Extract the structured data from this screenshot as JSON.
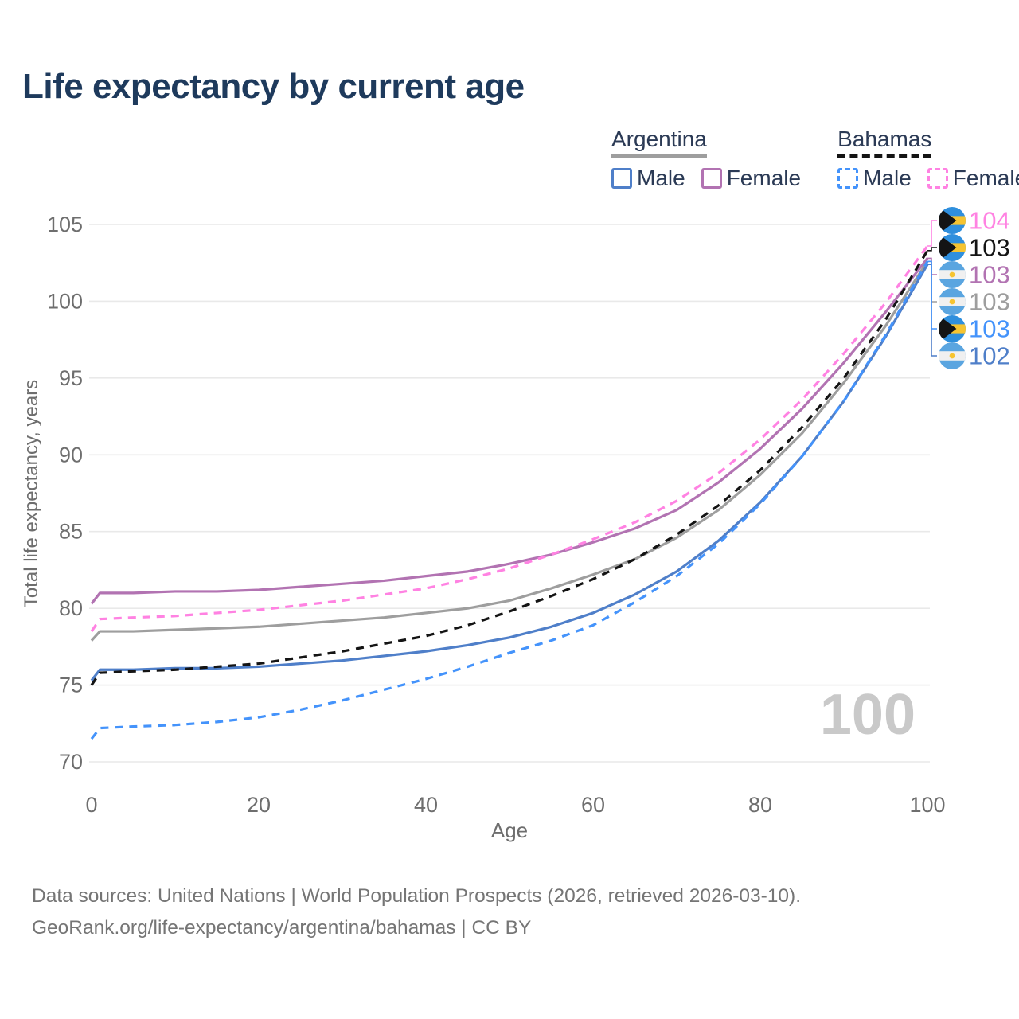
{
  "title": "Life expectancy by current age",
  "watermark": "100",
  "legend": {
    "groups": [
      {
        "label": "Argentina",
        "line_color": "#9e9e9e",
        "line_style": "solid",
        "items": [
          {
            "label": "Male",
            "color": "#4f7fc9",
            "style": "solid"
          },
          {
            "label": "Female",
            "color": "#b273b2",
            "style": "solid"
          }
        ]
      },
      {
        "label": "Bahamas",
        "line_color": "#141414",
        "line_style": "dashed",
        "items": [
          {
            "label": "Male",
            "color": "#4493fb",
            "style": "dashed"
          },
          {
            "label": "Female",
            "color": "#ff82e2",
            "style": "dashed"
          }
        ]
      }
    ]
  },
  "footer": {
    "line1": "Data sources: United Nations | World Population Prospects (2026, retrieved 2026-03-10).",
    "line2": "GeoRank.org/life-expectancy/argentina/bahamas | CC BY"
  },
  "chart_data": {
    "type": "line",
    "title": "Life expectancy by current age",
    "xlabel": "Age",
    "ylabel": "Total life expectancy, years",
    "xlim": [
      0,
      100
    ],
    "ylim": [
      70,
      105
    ],
    "x_ticks": [
      0,
      20,
      40,
      60,
      80,
      100
    ],
    "y_ticks": [
      70,
      75,
      80,
      85,
      90,
      95,
      100,
      105
    ],
    "grid": "horizontal",
    "legend_position": "top-right",
    "x": [
      0,
      1,
      5,
      10,
      15,
      20,
      25,
      30,
      35,
      40,
      45,
      50,
      55,
      60,
      65,
      70,
      75,
      80,
      85,
      90,
      95,
      100
    ],
    "series": [
      {
        "name": "Argentina Female",
        "flag": "argentina",
        "color": "#b273b2",
        "line_style": "solid",
        "end_label": "103",
        "label_row": 2,
        "values": [
          80.3,
          81.0,
          81.0,
          81.1,
          81.1,
          81.2,
          81.4,
          81.6,
          81.8,
          82.1,
          82.4,
          82.9,
          83.5,
          84.3,
          85.2,
          86.4,
          88.2,
          90.4,
          93.0,
          96.0,
          99.3,
          102.8
        ]
      },
      {
        "name": "Bahamas Female",
        "flag": "bahamas",
        "color": "#ff82e2",
        "line_style": "dashed",
        "end_label": "104",
        "label_row": 0,
        "values": [
          78.5,
          79.3,
          79.4,
          79.5,
          79.7,
          79.9,
          80.2,
          80.5,
          80.9,
          81.3,
          81.9,
          82.6,
          83.5,
          84.5,
          85.6,
          87.0,
          88.8,
          91.0,
          93.6,
          96.6,
          99.9,
          103.6
        ]
      },
      {
        "name": "Argentina",
        "flag": "argentina",
        "color": "#9e9e9e",
        "line_style": "solid",
        "end_label": "103",
        "label_row": 3,
        "values": [
          77.9,
          78.5,
          78.5,
          78.6,
          78.7,
          78.8,
          79.0,
          79.2,
          79.4,
          79.7,
          80.0,
          80.5,
          81.3,
          82.2,
          83.2,
          84.6,
          86.4,
          88.7,
          91.4,
          94.7,
          98.4,
          102.6
        ]
      },
      {
        "name": "Argentina Male",
        "flag": "argentina",
        "color": "#4f7fc9",
        "line_style": "solid",
        "end_label": "102",
        "label_row": 5,
        "values": [
          75.3,
          76.0,
          76.0,
          76.1,
          76.1,
          76.2,
          76.4,
          76.6,
          76.9,
          77.2,
          77.6,
          78.1,
          78.8,
          79.7,
          80.9,
          82.4,
          84.4,
          86.9,
          89.9,
          93.5,
          97.7,
          102.4
        ]
      },
      {
        "name": "Bahamas",
        "flag": "bahamas",
        "color": "#141414",
        "line_style": "dashed",
        "end_label": "103",
        "label_row": 1,
        "values": [
          75.0,
          75.8,
          75.9,
          76.0,
          76.2,
          76.4,
          76.8,
          77.2,
          77.7,
          78.2,
          78.9,
          79.8,
          80.8,
          81.9,
          83.2,
          84.8,
          86.7,
          89.0,
          91.8,
          95.0,
          98.8,
          103.3
        ]
      },
      {
        "name": "Bahamas Male",
        "flag": "bahamas",
        "color": "#4493fb",
        "line_style": "dashed",
        "end_label": "103",
        "label_row": 4,
        "values": [
          71.5,
          72.2,
          72.3,
          72.4,
          72.6,
          72.9,
          73.4,
          74.0,
          74.7,
          75.4,
          76.2,
          77.1,
          77.9,
          78.9,
          80.4,
          82.1,
          84.2,
          86.8,
          89.9,
          93.5,
          97.8,
          102.6
        ]
      }
    ],
    "colors": {
      "title_text": "#1e3a5c",
      "axis_text": "#6e6e6e",
      "gridline": "#e9e9e9",
      "watermark": "#c9c9c9",
      "footer_text": "#757575",
      "flag_argentina_band": "#5aa5e0",
      "flag_argentina_middle": "#f0f0f0",
      "flag_sun_gold": "#f6c431",
      "flag_bahamas_band": "#2f8fdd",
      "flag_bahamas_chevron": "#141414"
    }
  }
}
